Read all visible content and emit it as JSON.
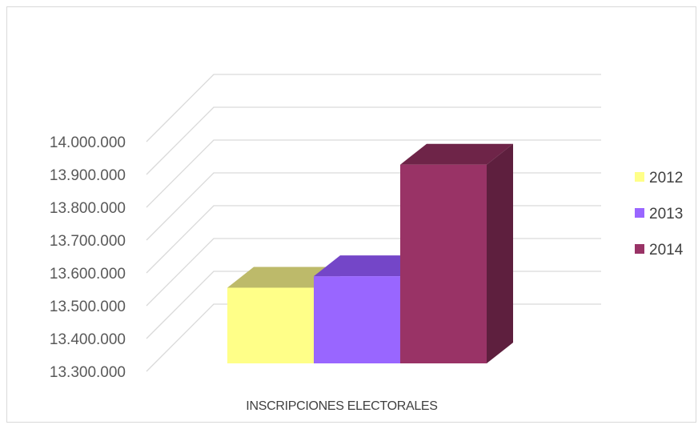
{
  "chart_data": {
    "type": "bar",
    "categories": [
      "INSCRIPCIONES ELECTORALES"
    ],
    "series": [
      {
        "name": "2012",
        "values": [
          13555000
        ],
        "color": "#FFFF88",
        "top_color": "#BDBA6A",
        "side_color": "#C8C86A"
      },
      {
        "name": "2013",
        "values": [
          13590000
        ],
        "color": "#9966FF",
        "top_color": "#7446C8",
        "side_color": "#6A3FB5"
      },
      {
        "name": "2014",
        "values": [
          13930000
        ],
        "color": "#993366",
        "top_color": "#6E2448",
        "side_color": "#5E1F3E"
      }
    ],
    "yticks": [
      "13.300.000",
      "13.400.000",
      "13.500.000",
      "13.600.000",
      "13.700.000",
      "13.800.000",
      "13.900.000",
      "14.000.000"
    ],
    "ylim": [
      13300000,
      14000000
    ],
    "chart_style": "3d-clustered-column",
    "gridlines": true,
    "legend_position": "right"
  }
}
